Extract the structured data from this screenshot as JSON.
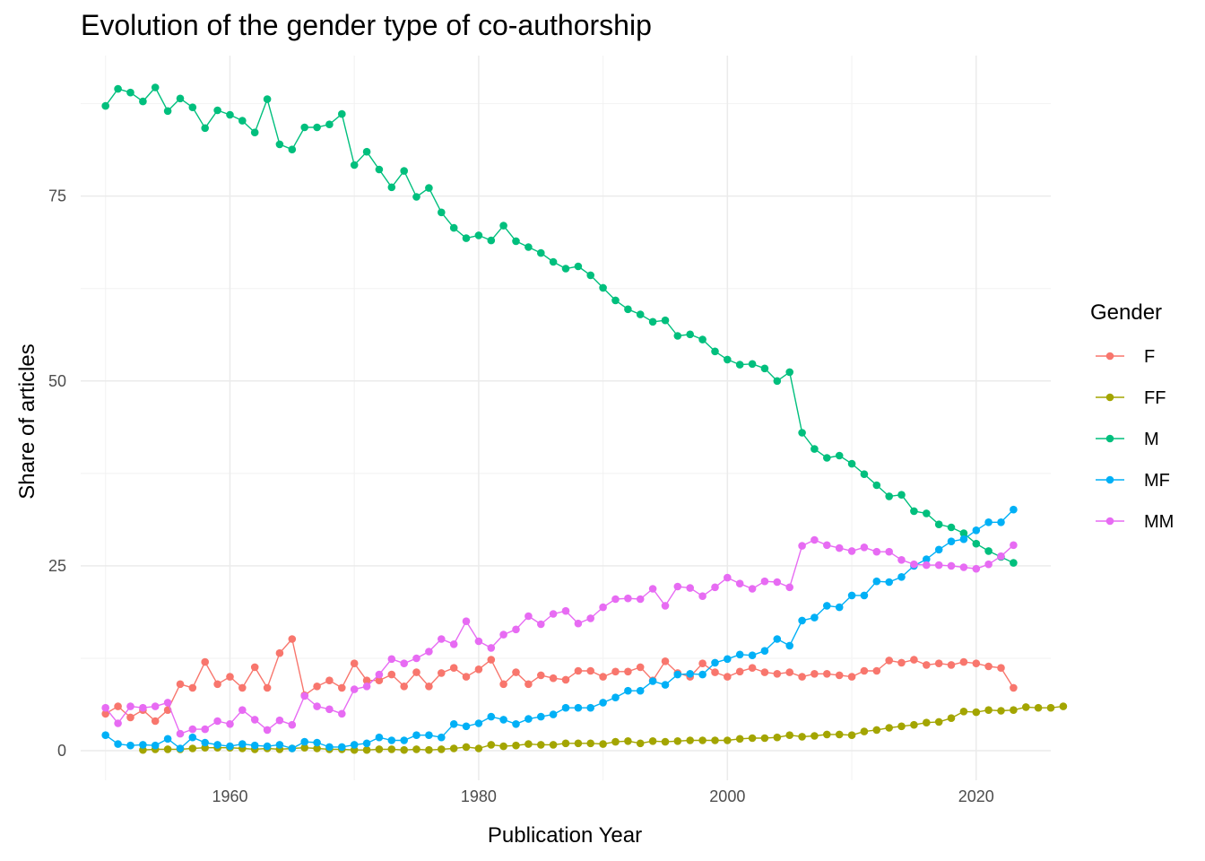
{
  "chart_data": {
    "type": "line",
    "title": "Evolution of the gender type of co-authorship",
    "xlabel": "Publication Year",
    "ylabel": "Share of articles",
    "xlim": [
      1948,
      2026
    ],
    "ylim": [
      -4,
      94
    ],
    "x_ticks": [
      1960,
      1980,
      2000,
      2020
    ],
    "y_ticks": [
      0,
      25,
      50,
      75
    ],
    "grid": true,
    "legend": {
      "title": "Gender",
      "position": "right"
    },
    "series": [
      {
        "name": "F",
        "color": "#F8766D",
        "start": 1950,
        "values": [
          5,
          6,
          4.5,
          5.5,
          4,
          5.5,
          9,
          8.5,
          12,
          9,
          10,
          8.5,
          11.3,
          8.5,
          13.2,
          15.1,
          7.5,
          8.7,
          9.5,
          8.5,
          11.8,
          9.5,
          9.5,
          10.3,
          8.7,
          10.6,
          8.7,
          10.5,
          11.2,
          10,
          11,
          12.3,
          9,
          10.6,
          9,
          10.2,
          9.8,
          9.6,
          10.8,
          10.8,
          10,
          10.7,
          10.7,
          11.3,
          9.5,
          12.1,
          10.5,
          10,
          11.8,
          10.6,
          10,
          10.7,
          11.2,
          10.6,
          10.4,
          10.6,
          10,
          10.4,
          10.4,
          10.2,
          10,
          10.8,
          10.8,
          12.2,
          11.9,
          12.3,
          11.6,
          11.8,
          11.6,
          12,
          11.8,
          11.4,
          11.2,
          8.5
        ]
      },
      {
        "name": "FF",
        "color": "#A3A500",
        "start": 1953,
        "values": [
          0.1,
          0.2,
          0.2,
          0.2,
          0.3,
          0.4,
          0.4,
          0.4,
          0.3,
          0.2,
          0.3,
          0.2,
          0.3,
          0.4,
          0.3,
          0.2,
          0.2,
          0.1,
          0.1,
          0.2,
          0.2,
          0.1,
          0.2,
          0.1,
          0.2,
          0.3,
          0.5,
          0.3,
          0.8,
          0.6,
          0.7,
          0.9,
          0.8,
          0.8,
          1,
          1,
          1,
          0.9,
          1.2,
          1.3,
          1,
          1.3,
          1.2,
          1.3,
          1.4,
          1.4,
          1.4,
          1.4,
          1.6,
          1.7,
          1.7,
          1.8,
          2.1,
          1.9,
          2,
          2.2,
          2.2,
          2.1,
          2.6,
          2.8,
          3.1,
          3.3,
          3.5,
          3.8,
          3.9,
          4.4,
          5.3,
          5.2,
          5.5,
          5.4,
          5.5,
          5.9,
          5.8,
          5.8,
          6
        ]
      },
      {
        "name": "M",
        "color": "#00BF7D",
        "start": 1950,
        "values": [
          87.2,
          89.5,
          89,
          87.8,
          89.7,
          86.5,
          88.2,
          87,
          84.2,
          86.6,
          86,
          85.2,
          83.6,
          88.1,
          82,
          81.3,
          84.3,
          84.3,
          84.7,
          86.1,
          79.2,
          81,
          78.6,
          76.2,
          78.4,
          74.9,
          76.1,
          72.8,
          70.7,
          69.3,
          69.7,
          69,
          71,
          68.9,
          68.1,
          67.3,
          66.1,
          65.2,
          65.5,
          64.3,
          62.6,
          60.9,
          59.7,
          59,
          58,
          58.2,
          56.1,
          56.3,
          55.6,
          54,
          52.9,
          52.2,
          52.3,
          51.7,
          50,
          51.2,
          43,
          40.8,
          39.6,
          39.9,
          38.8,
          37.4,
          35.9,
          34.4,
          34.6,
          32.4,
          32.1,
          30.6,
          30.2,
          29.4,
          28,
          27,
          26.2,
          25.4
        ]
      },
      {
        "name": "MF",
        "color": "#00B0F6",
        "start": 1950,
        "values": [
          2.1,
          0.9,
          0.7,
          0.8,
          0.7,
          1.6,
          0.3,
          1.8,
          1.1,
          0.8,
          0.6,
          0.9,
          0.7,
          0.6,
          0.8,
          0.3,
          1.2,
          1.1,
          0.5,
          0.5,
          0.8,
          1,
          1.8,
          1.4,
          1.4,
          2.1,
          2.1,
          1.8,
          3.6,
          3.3,
          3.7,
          4.6,
          4.2,
          3.6,
          4.3,
          4.6,
          4.9,
          5.8,
          5.8,
          5.8,
          6.5,
          7.2,
          8.1,
          8.1,
          9.4,
          8.9,
          10.3,
          10.4,
          10.3,
          11.9,
          12.4,
          13,
          12.9,
          13.5,
          15.1,
          14.2,
          17.6,
          18,
          19.6,
          19.4,
          21,
          21,
          22.9,
          22.8,
          23.5,
          25,
          25.9,
          27.2,
          28.3,
          28.6,
          29.8,
          30.9,
          30.9,
          32.6
        ]
      },
      {
        "name": "MM",
        "color": "#E76BF3",
        "start": 1950,
        "values": [
          5.8,
          3.7,
          6,
          5.8,
          6,
          6.5,
          2.3,
          2.9,
          2.9,
          4,
          3.6,
          5.5,
          4.2,
          2.8,
          4.1,
          3.5,
          7.4,
          6,
          5.6,
          5,
          8.3,
          8.7,
          10.3,
          12.4,
          11.8,
          12.5,
          13.4,
          15.1,
          14.4,
          17.5,
          14.8,
          13.9,
          15.7,
          16.4,
          18.2,
          17.1,
          18.5,
          18.9,
          17.2,
          17.9,
          19.4,
          20.5,
          20.6,
          20.5,
          21.9,
          19.6,
          22.2,
          22,
          20.9,
          22.1,
          23.4,
          22.6,
          21.9,
          22.9,
          22.8,
          22.1,
          27.7,
          28.5,
          27.8,
          27.4,
          27,
          27.5,
          26.9,
          26.9,
          25.8,
          25.2,
          25.1,
          25.1,
          25,
          24.8,
          24.6,
          25.2,
          26.3,
          27.8
        ]
      }
    ]
  }
}
